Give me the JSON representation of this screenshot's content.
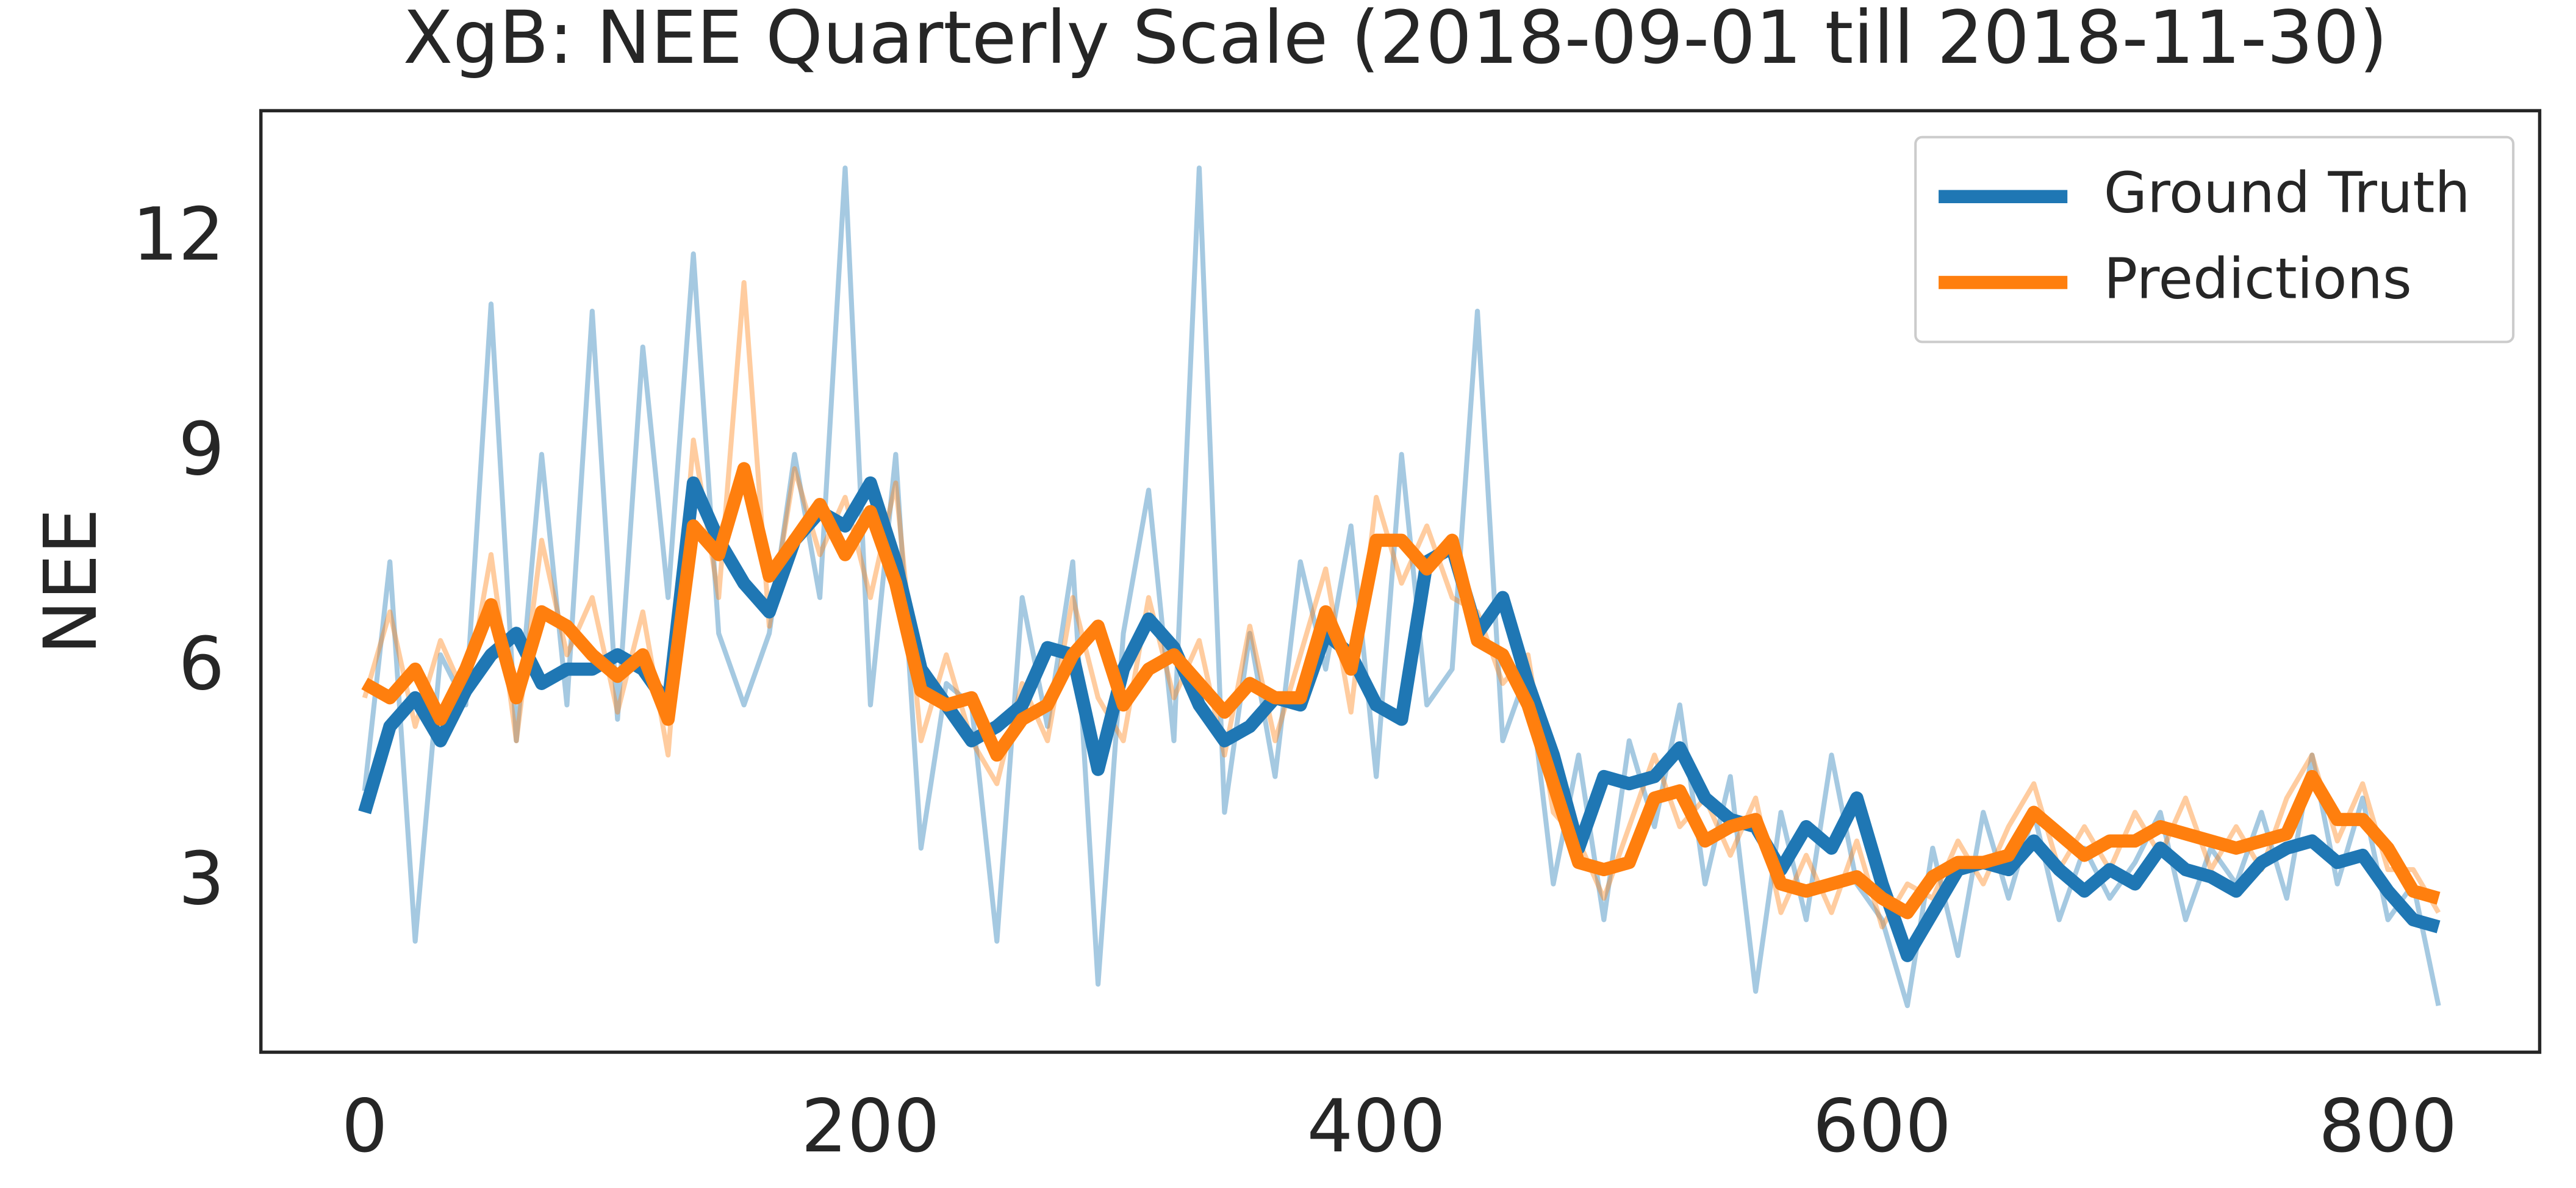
{
  "chart_data": {
    "type": "line",
    "title": "XgB: NEE Quarterly Scale (2018-09-01 till 2018-11-30)",
    "y_label": "NEE",
    "x": [
      0,
      10,
      20,
      30,
      40,
      50,
      60,
      70,
      80,
      90,
      100,
      110,
      120,
      130,
      140,
      150,
      160,
      170,
      180,
      190,
      200,
      210,
      220,
      230,
      240,
      250,
      260,
      270,
      280,
      290,
      300,
      310,
      320,
      330,
      340,
      350,
      360,
      370,
      380,
      390,
      400,
      410,
      420,
      430,
      440,
      450,
      460,
      470,
      480,
      490,
      500,
      510,
      520,
      530,
      540,
      550,
      560,
      570,
      580,
      590,
      600,
      610,
      620,
      630,
      640,
      650,
      660,
      670,
      680,
      690,
      700,
      710,
      720,
      730,
      740,
      750,
      760,
      770,
      780,
      790,
      800,
      810,
      820
    ],
    "series": [
      {
        "color": "#1f77b4",
        "opacity": 0.4,
        "width": 3,
        "values": [
          4.3,
          7.5,
          2.2,
          6.2,
          5.5,
          11.1,
          5.0,
          9.0,
          5.5,
          11.0,
          5.3,
          10.5,
          7.0,
          11.8,
          6.5,
          5.5,
          6.5,
          9.0,
          7.0,
          13.0,
          5.5,
          9.0,
          3.5,
          5.8,
          5.5,
          2.2,
          7.0,
          5.2,
          7.5,
          1.6,
          6.5,
          8.5,
          5.0,
          13.0,
          4.0,
          6.5,
          4.5,
          7.5,
          6.0,
          8.0,
          4.5,
          9.0,
          5.5,
          6.0,
          11.0,
          5.0,
          6.0,
          3.0,
          4.8,
          2.5,
          5.0,
          3.8,
          5.5,
          3.0,
          4.5,
          1.5,
          4.0,
          2.5,
          4.8,
          3.0,
          2.5,
          1.3,
          3.5,
          2.0,
          4.0,
          2.8,
          4.0,
          2.5,
          3.5,
          2.8,
          3.3,
          4.0,
          2.5,
          3.5,
          3.0,
          4.0,
          2.8,
          4.8,
          3.0,
          4.2,
          2.5,
          3.0,
          1.3
        ]
      },
      {
        "color": "#ff7f0e",
        "opacity": 0.4,
        "width": 3,
        "values": [
          5.6,
          6.8,
          5.2,
          6.4,
          5.6,
          7.6,
          5.0,
          7.8,
          6.2,
          7.0,
          5.4,
          6.8,
          4.8,
          9.2,
          7.0,
          11.4,
          6.6,
          8.8,
          7.6,
          8.4,
          7.0,
          8.6,
          5.0,
          6.2,
          5.0,
          4.4,
          5.8,
          5.0,
          7.0,
          5.6,
          5.0,
          7.0,
          5.6,
          6.4,
          4.8,
          6.6,
          5.0,
          6.2,
          7.4,
          5.4,
          8.4,
          7.2,
          8.0,
          7.0,
          6.8,
          5.8,
          6.2,
          4.0,
          3.6,
          2.8,
          3.8,
          4.8,
          3.8,
          4.2,
          3.4,
          4.2,
          2.6,
          3.4,
          2.6,
          3.6,
          2.4,
          3.0,
          2.8,
          3.6,
          3.0,
          3.8,
          4.4,
          3.2,
          3.8,
          3.2,
          4.0,
          3.4,
          4.2,
          3.2,
          3.8,
          3.2,
          4.2,
          4.8,
          3.6,
          4.4,
          3.2,
          3.2,
          2.6
        ]
      },
      {
        "name": "Ground Truth",
        "color": "#1f77b4",
        "opacity": 1,
        "width": 8,
        "values": [
          4.0,
          5.2,
          5.6,
          5.0,
          5.7,
          6.2,
          6.5,
          5.8,
          6.0,
          6.0,
          6.2,
          6.0,
          5.5,
          8.6,
          7.8,
          7.2,
          6.8,
          7.8,
          8.2,
          8.0,
          8.6,
          7.5,
          6.0,
          5.5,
          5.0,
          5.2,
          5.5,
          6.3,
          6.2,
          4.6,
          6.0,
          6.7,
          6.3,
          5.5,
          5.0,
          5.2,
          5.6,
          5.5,
          6.5,
          6.2,
          5.5,
          5.3,
          7.5,
          7.7,
          6.5,
          7.0,
          5.8,
          4.8,
          3.5,
          4.5,
          4.4,
          4.5,
          4.9,
          4.2,
          3.9,
          3.8,
          3.2,
          3.8,
          3.5,
          4.2,
          3.0,
          2.0,
          2.6,
          3.2,
          3.3,
          3.2,
          3.6,
          3.2,
          2.9,
          3.2,
          3.0,
          3.5,
          3.2,
          3.1,
          2.9,
          3.3,
          3.5,
          3.6,
          3.3,
          3.4,
          2.9,
          2.5,
          2.4
        ]
      },
      {
        "name": "Predictions",
        "color": "#ff7f0e",
        "opacity": 1,
        "width": 8,
        "values": [
          5.8,
          5.6,
          6.0,
          5.3,
          6.0,
          6.9,
          5.6,
          6.8,
          6.6,
          6.2,
          5.9,
          6.2,
          5.3,
          8.0,
          7.6,
          8.8,
          7.3,
          7.8,
          8.3,
          7.6,
          8.2,
          7.2,
          5.7,
          5.5,
          5.6,
          4.8,
          5.3,
          5.5,
          6.2,
          6.6,
          5.5,
          6.0,
          6.2,
          5.8,
          5.4,
          5.8,
          5.6,
          5.6,
          6.8,
          6.0,
          7.8,
          7.8,
          7.4,
          7.8,
          6.4,
          6.2,
          5.5,
          4.4,
          3.3,
          3.2,
          3.3,
          4.2,
          4.3,
          3.6,
          3.8,
          3.9,
          3.0,
          2.9,
          3.0,
          3.1,
          2.8,
          2.6,
          3.1,
          3.3,
          3.3,
          3.4,
          4.0,
          3.7,
          3.4,
          3.6,
          3.6,
          3.8,
          3.7,
          3.6,
          3.5,
          3.6,
          3.7,
          4.5,
          3.9,
          3.9,
          3.5,
          2.9,
          2.8
        ]
      }
    ],
    "xlim": [
      -41,
      860
    ],
    "xticks": [
      0,
      200,
      400,
      600,
      800
    ],
    "ylim": [
      0.65,
      13.8
    ],
    "yticks": [
      3,
      6,
      9,
      12
    ],
    "grid": false,
    "legend": "upper right"
  }
}
